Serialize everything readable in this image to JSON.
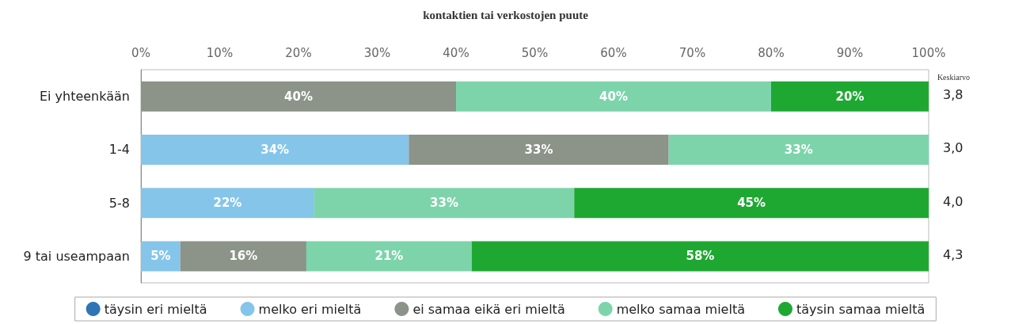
{
  "chart_data": {
    "type": "bar",
    "orientation": "horizontal",
    "stacked": true,
    "title": "kontaktien tai verkostojen puute",
    "categories": [
      "Ei yhteenkään",
      "1-4",
      "5-8",
      "9 tai useampaan"
    ],
    "series": [
      {
        "name": "täysin eri mieltä",
        "color": "#2e75b6",
        "values": [
          0,
          0,
          0,
          0
        ],
        "value_labels": [
          null,
          null,
          null,
          null
        ]
      },
      {
        "name": "melko eri mieltä",
        "color": "#85c5ea",
        "values": [
          0,
          34,
          22,
          5
        ],
        "value_labels": [
          null,
          "34%",
          "22%",
          "5%"
        ]
      },
      {
        "name": "ei samaa eikä eri mieltä",
        "color": "#8c9389",
        "values": [
          40,
          33,
          0,
          16
        ],
        "value_labels": [
          "40%",
          "33%",
          null,
          "16%"
        ]
      },
      {
        "name": "melko samaa mieltä",
        "color": "#7dd4ab",
        "values": [
          40,
          33,
          33,
          21
        ],
        "value_labels": [
          "40%",
          "33%",
          "33%",
          "21%"
        ]
      },
      {
        "name": "täysin samaa mieltä",
        "color": "#1ea832",
        "values": [
          20,
          0,
          45,
          58
        ],
        "value_labels": [
          "20%",
          null,
          "45%",
          "58%"
        ]
      }
    ],
    "xlim": [
      0,
      100
    ],
    "xticks": [
      {
        "value": 0,
        "label": "0%"
      },
      {
        "value": 10,
        "label": "10%"
      },
      {
        "value": 20,
        "label": "20%"
      },
      {
        "value": 30,
        "label": "30%"
      },
      {
        "value": 40,
        "label": "40%"
      },
      {
        "value": 50,
        "label": "50%"
      },
      {
        "value": 60,
        "label": "60%"
      },
      {
        "value": 70,
        "label": "70%"
      },
      {
        "value": 80,
        "label": "80%"
      },
      {
        "value": 90,
        "label": "90%"
      },
      {
        "value": 100,
        "label": "100%"
      }
    ],
    "legend": "bottom",
    "grid": false,
    "annotations": [
      "Keskiarvo",
      "3,8",
      "3,0",
      "4,0",
      "4,3"
    ]
  }
}
